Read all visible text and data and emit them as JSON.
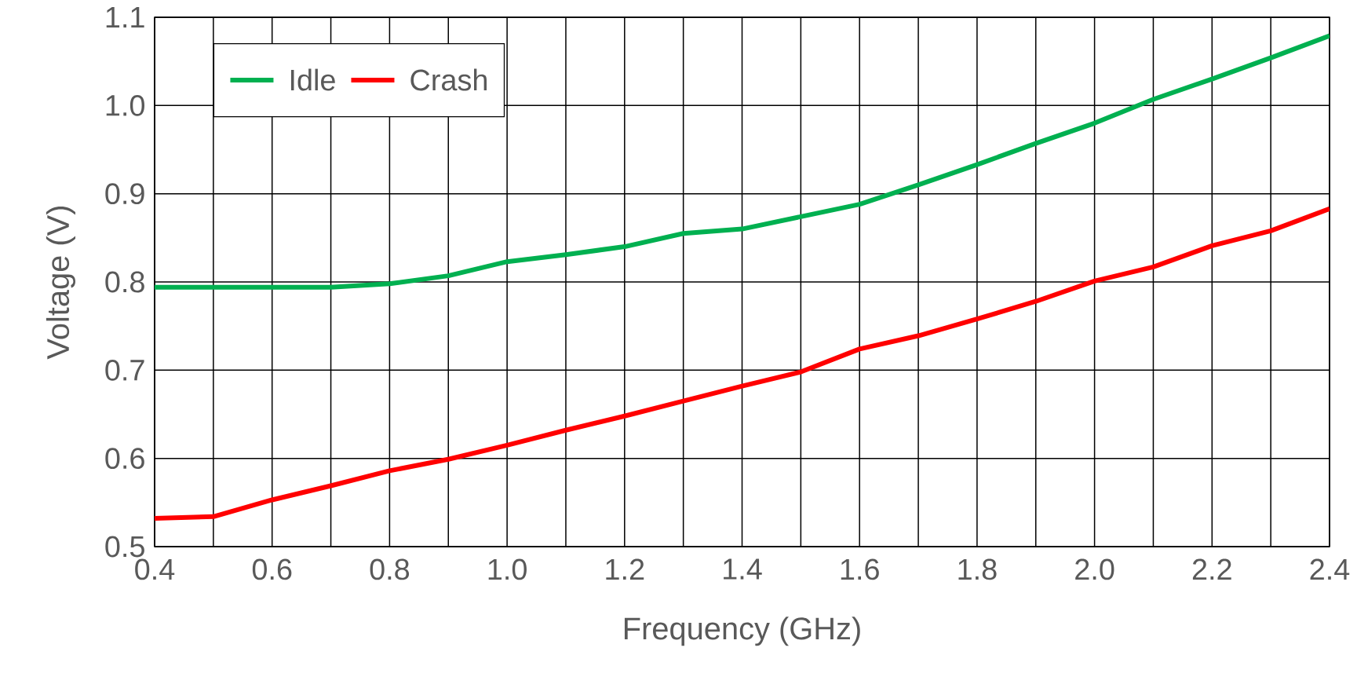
{
  "chart_data": {
    "type": "line",
    "xlabel": "Frequency (GHz)",
    "ylabel": "Voltage (V)",
    "x": [
      0.4,
      0.5,
      0.6,
      0.7,
      0.8,
      0.9,
      1.0,
      1.1,
      1.2,
      1.3,
      1.4,
      1.5,
      1.6,
      1.7,
      1.8,
      1.9,
      2.0,
      2.1,
      2.2,
      2.3,
      2.4
    ],
    "series": [
      {
        "name": "Idle",
        "color": "#00b050",
        "values": [
          0.794,
          0.794,
          0.794,
          0.794,
          0.798,
          0.807,
          0.823,
          0.831,
          0.84,
          0.855,
          0.86,
          0.874,
          0.888,
          0.91,
          0.933,
          0.957,
          0.98,
          1.007,
          1.03,
          1.054,
          1.079
        ]
      },
      {
        "name": "Crash",
        "color": "#ff0000",
        "values": [
          0.532,
          0.534,
          0.553,
          0.569,
          0.586,
          0.599,
          0.615,
          0.632,
          0.648,
          0.665,
          0.682,
          0.698,
          0.724,
          0.739,
          0.758,
          0.778,
          0.801,
          0.817,
          0.841,
          0.858,
          0.883
        ]
      }
    ],
    "xlim": [
      0.4,
      2.4
    ],
    "xticks": [
      0.4,
      {
        "value": 0.5,
        "label": null
      },
      0.6,
      {
        "value": 0.7,
        "label": null
      },
      0.8,
      {
        "value": 0.9,
        "label": null
      },
      "1.0",
      {
        "value": 1.1,
        "label": null
      },
      1.2,
      {
        "value": 1.3,
        "label": null
      },
      1.4,
      {
        "value": 1.5,
        "label": null
      },
      1.6,
      {
        "value": 1.7,
        "label": null
      },
      1.8,
      {
        "value": 1.9,
        "label": null
      },
      "2.0",
      {
        "value": 2.1,
        "label": null
      },
      2.2,
      {
        "value": 2.3,
        "label": null
      },
      2.4
    ],
    "ylim": [
      0.5,
      1.1
    ],
    "yticks": [
      0.5,
      0.6,
      0.7,
      0.8,
      0.9,
      "1.0",
      1.1
    ],
    "grid": true,
    "legend": "top left",
    "marker": "none",
    "line_style": "solid"
  }
}
